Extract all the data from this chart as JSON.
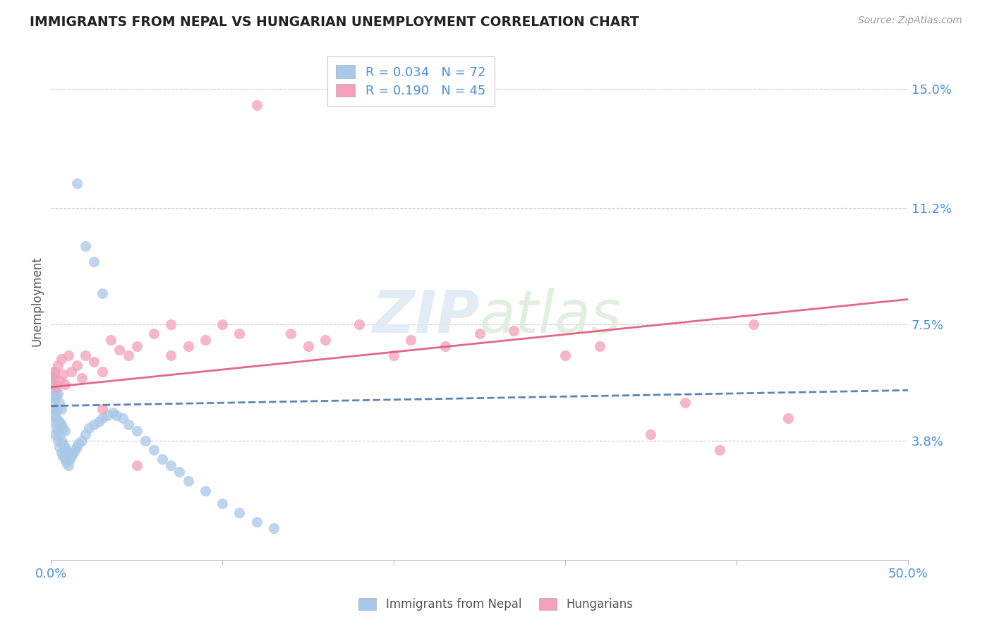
{
  "title": "IMMIGRANTS FROM NEPAL VS HUNGARIAN UNEMPLOYMENT CORRELATION CHART",
  "source": "Source: ZipAtlas.com",
  "ylabel": "Unemployment",
  "xlim": [
    0.0,
    0.5
  ],
  "ylim": [
    0.0,
    0.165
  ],
  "yticks": [
    0.038,
    0.075,
    0.112,
    0.15
  ],
  "ytick_labels": [
    "3.8%",
    "7.5%",
    "11.2%",
    "15.0%"
  ],
  "xticks": [
    0.0,
    0.1,
    0.2,
    0.3,
    0.4,
    0.5
  ],
  "xtick_labels": [
    "0.0%",
    "",
    "",
    "",
    "",
    "50.0%"
  ],
  "legend_r1": "R = 0.034",
  "legend_n1": "N = 72",
  "legend_r2": "R = 0.190",
  "legend_n2": "N = 45",
  "color_nepal": "#a8c8e8",
  "color_hungarian": "#f4a0b8",
  "color_nepal_line": "#4878b0",
  "color_hungarian_line": "#e05878",
  "color_axis_labels": "#4a90d9",
  "color_title": "#222222",
  "background_color": "#ffffff",
  "nepal_x": [
    0.001,
    0.001,
    0.001,
    0.001,
    0.001,
    0.002,
    0.002,
    0.002,
    0.002,
    0.002,
    0.002,
    0.003,
    0.003,
    0.003,
    0.003,
    0.003,
    0.004,
    0.004,
    0.004,
    0.004,
    0.004,
    0.005,
    0.005,
    0.005,
    0.005,
    0.006,
    0.006,
    0.006,
    0.006,
    0.007,
    0.007,
    0.007,
    0.008,
    0.008,
    0.008,
    0.009,
    0.009,
    0.01,
    0.01,
    0.011,
    0.012,
    0.013,
    0.014,
    0.015,
    0.016,
    0.018,
    0.02,
    0.022,
    0.025,
    0.028,
    0.03,
    0.033,
    0.036,
    0.038,
    0.042,
    0.045,
    0.05,
    0.055,
    0.06,
    0.065,
    0.07,
    0.075,
    0.08,
    0.09,
    0.1,
    0.11,
    0.12,
    0.13,
    0.015,
    0.02,
    0.025,
    0.03
  ],
  "nepal_y": [
    0.048,
    0.052,
    0.055,
    0.058,
    0.044,
    0.046,
    0.05,
    0.054,
    0.058,
    0.06,
    0.04,
    0.042,
    0.045,
    0.048,
    0.052,
    0.056,
    0.038,
    0.041,
    0.044,
    0.048,
    0.053,
    0.036,
    0.04,
    0.044,
    0.05,
    0.034,
    0.038,
    0.043,
    0.048,
    0.033,
    0.037,
    0.042,
    0.032,
    0.036,
    0.041,
    0.031,
    0.035,
    0.03,
    0.034,
    0.032,
    0.033,
    0.034,
    0.035,
    0.036,
    0.037,
    0.038,
    0.04,
    0.042,
    0.043,
    0.044,
    0.045,
    0.046,
    0.047,
    0.046,
    0.045,
    0.043,
    0.041,
    0.038,
    0.035,
    0.032,
    0.03,
    0.028,
    0.025,
    0.022,
    0.018,
    0.015,
    0.012,
    0.01,
    0.12,
    0.1,
    0.095,
    0.085
  ],
  "hungarian_x": [
    0.001,
    0.002,
    0.003,
    0.004,
    0.005,
    0.006,
    0.007,
    0.008,
    0.01,
    0.012,
    0.015,
    0.018,
    0.02,
    0.025,
    0.03,
    0.035,
    0.04,
    0.045,
    0.05,
    0.06,
    0.07,
    0.08,
    0.09,
    0.1,
    0.11,
    0.12,
    0.14,
    0.15,
    0.16,
    0.18,
    0.2,
    0.21,
    0.23,
    0.25,
    0.27,
    0.3,
    0.32,
    0.35,
    0.37,
    0.39,
    0.41,
    0.43,
    0.03,
    0.05,
    0.07
  ],
  "hungarian_y": [
    0.058,
    0.06,
    0.055,
    0.062,
    0.057,
    0.064,
    0.059,
    0.056,
    0.065,
    0.06,
    0.062,
    0.058,
    0.065,
    0.063,
    0.06,
    0.07,
    0.067,
    0.065,
    0.068,
    0.072,
    0.065,
    0.068,
    0.07,
    0.075,
    0.072,
    0.145,
    0.072,
    0.068,
    0.07,
    0.075,
    0.065,
    0.07,
    0.068,
    0.072,
    0.073,
    0.065,
    0.068,
    0.04,
    0.05,
    0.035,
    0.075,
    0.045,
    0.048,
    0.03,
    0.075
  ],
  "nepal_trend": [
    0.052,
    0.055
  ],
  "hungarian_trend_start": 0.056,
  "hungarian_trend_end": 0.082
}
